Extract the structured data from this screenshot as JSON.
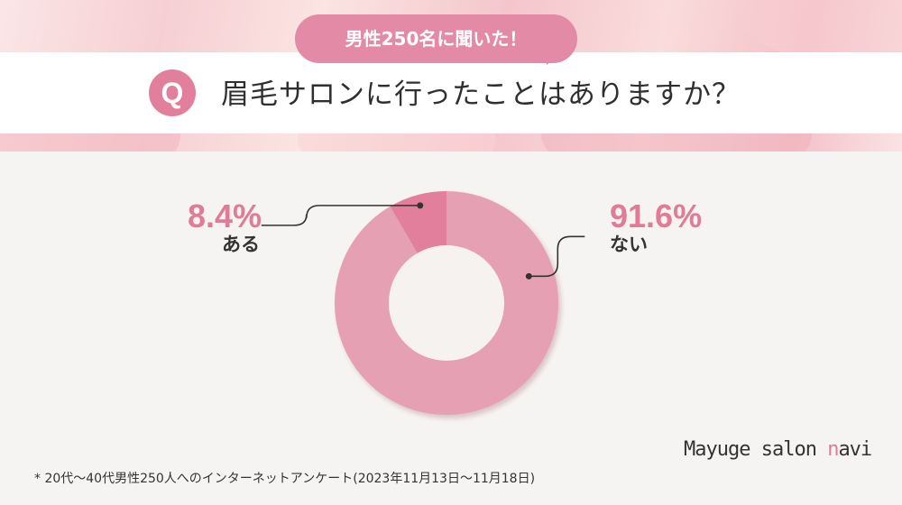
{
  "callout": "男性250名に聞いた！",
  "question": {
    "badge": "Q",
    "text": "眉毛サロンに行ったことはありますか？"
  },
  "chart_data": {
    "type": "pie",
    "categories": [
      "ない",
      "ある"
    ],
    "values": [
      91.6,
      8.4
    ],
    "value_labels": [
      "91.6%",
      "8.4%"
    ],
    "colors": [
      "#e6a0b4",
      "#e27f9d"
    ],
    "title": "",
    "legend": "none",
    "grid": false
  },
  "labels": {
    "aru_pct": "8.4%",
    "aru": "ある",
    "nai_pct": "91.6%",
    "nai": "ない"
  },
  "logo": {
    "main": "Mayuge salon ",
    "accent": "n",
    "tail": "avi"
  },
  "footnote": "* 20代〜40代男性250人へのインターネットアンケート(2023年11月13日〜11月18日)"
}
